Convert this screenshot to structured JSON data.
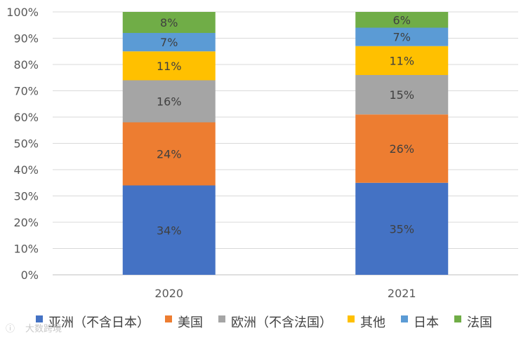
{
  "chart_data": {
    "type": "bar",
    "stacked": true,
    "percent_stacked": true,
    "categories": [
      "2020",
      "2021"
    ],
    "series": [
      {
        "name": "亚洲（不含日本）",
        "values": [
          34,
          35
        ],
        "labels": [
          "34%",
          "35%"
        ],
        "color": "#4472C4"
      },
      {
        "name": "美国",
        "values": [
          24,
          26
        ],
        "labels": [
          "24%",
          "26%"
        ],
        "color": "#ED7D31"
      },
      {
        "name": "欧洲（不含法国）",
        "values": [
          16,
          15
        ],
        "labels": [
          "16%",
          "15%"
        ],
        "color": "#A5A5A5"
      },
      {
        "name": "其他",
        "values": [
          11,
          11
        ],
        "labels": [
          "11%",
          "11%"
        ],
        "color": "#FFC000"
      },
      {
        "name": "日本",
        "values": [
          7,
          7
        ],
        "labels": [
          "7%",
          "7%"
        ],
        "color": "#5B9BD5"
      },
      {
        "name": "法国",
        "values": [
          8,
          6
        ],
        "labels": [
          "8%",
          "6%"
        ],
        "color": "#70AD47"
      }
    ],
    "y_ticks": [
      "0%",
      "10%",
      "20%",
      "30%",
      "40%",
      "50%",
      "60%",
      "70%",
      "80%",
      "90%",
      "100%"
    ],
    "ylim": [
      0,
      100
    ],
    "grid": true,
    "legend_position": "bottom",
    "title": "",
    "xlabel": "",
    "ylabel": ""
  },
  "watermark": "大数跨境"
}
